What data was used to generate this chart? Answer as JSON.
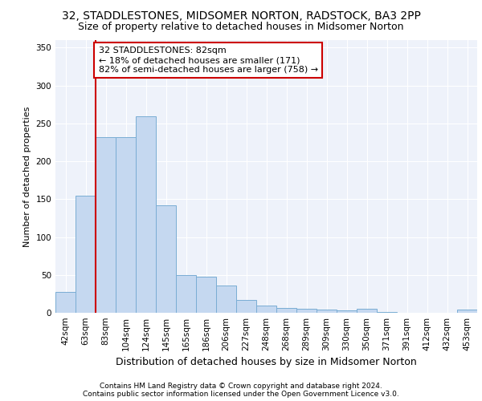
{
  "title1": "32, STADDLESTONES, MIDSOMER NORTON, RADSTOCK, BA3 2PP",
  "title2": "Size of property relative to detached houses in Midsomer Norton",
  "xlabel": "Distribution of detached houses by size in Midsomer Norton",
  "ylabel": "Number of detached properties",
  "footer1": "Contains HM Land Registry data © Crown copyright and database right 2024.",
  "footer2": "Contains public sector information licensed under the Open Government Licence v3.0.",
  "categories": [
    "42sqm",
    "63sqm",
    "83sqm",
    "104sqm",
    "124sqm",
    "145sqm",
    "165sqm",
    "186sqm",
    "206sqm",
    "227sqm",
    "248sqm",
    "268sqm",
    "289sqm",
    "309sqm",
    "330sqm",
    "350sqm",
    "371sqm",
    "391sqm",
    "412sqm",
    "432sqm",
    "453sqm"
  ],
  "values": [
    28,
    155,
    232,
    232,
    259,
    142,
    50,
    48,
    36,
    17,
    10,
    6,
    5,
    4,
    3,
    5,
    1,
    0,
    0,
    0,
    4
  ],
  "bar_color": "#c5d8f0",
  "bar_edge_color": "#7aadd4",
  "background_color": "#eef2fa",
  "grid_color": "#ffffff",
  "annotation_box_facecolor": "#ffffff",
  "annotation_border_color": "#cc0000",
  "vline_color": "#cc0000",
  "vline_x_index": 2,
  "annotation_text": "32 STADDLESTONES: 82sqm\n← 18% of detached houses are smaller (171)\n82% of semi-detached houses are larger (758) →",
  "ylim": [
    0,
    360
  ],
  "yticks": [
    0,
    50,
    100,
    150,
    200,
    250,
    300,
    350
  ],
  "title1_fontsize": 10,
  "title2_fontsize": 9,
  "xlabel_fontsize": 9,
  "ylabel_fontsize": 8,
  "tick_fontsize": 7.5,
  "annotation_fontsize": 8,
  "footer_fontsize": 6.5
}
